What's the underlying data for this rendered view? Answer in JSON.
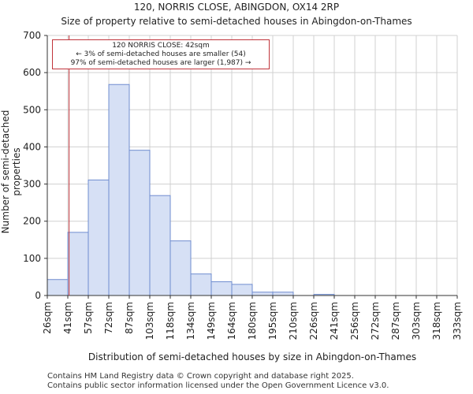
{
  "title": {
    "line1": "120, NORRIS CLOSE, ABINGDON, OX14 2RP",
    "line2": "Size of property relative to semi-detached houses in Abingdon-on-Thames"
  },
  "footer": {
    "line1": "Contains HM Land Registry data © Crown copyright and database right 2025.",
    "line2": "Contains public sector information licensed under the Open Government Licence v3.0."
  },
  "chart_data": {
    "type": "bar",
    "title": "Size of property relative to semi-detached houses in Abingdon-on-Thames",
    "xlabel": "Distribution of semi-detached houses by size in Abingdon-on-Thames",
    "ylabel": "Number of semi-detached properties",
    "bin_edges": [
      26,
      41,
      57,
      72,
      87,
      103,
      118,
      134,
      149,
      164,
      180,
      195,
      210,
      226,
      241,
      256,
      272,
      287,
      303,
      318,
      333
    ],
    "tick_labels": [
      "26sqm",
      "41sqm",
      "57sqm",
      "72sqm",
      "87sqm",
      "103sqm",
      "118sqm",
      "134sqm",
      "149sqm",
      "164sqm",
      "180sqm",
      "195sqm",
      "210sqm",
      "226sqm",
      "241sqm",
      "256sqm",
      "272sqm",
      "287sqm",
      "303sqm",
      "318sqm",
      "333sqm"
    ],
    "values": [
      43,
      170,
      311,
      568,
      391,
      269,
      147,
      58,
      37,
      30,
      9,
      9,
      0,
      3,
      0,
      0,
      0,
      0,
      0,
      0
    ],
    "ylim": [
      0,
      700
    ],
    "yticks": [
      0,
      100,
      200,
      300,
      400,
      500,
      600,
      700
    ],
    "bar_color": "#d6e0f5",
    "bar_edge_color": "#6f8ccf",
    "marker": {
      "value": 42,
      "color": "#c0343b",
      "annotation": {
        "line1": "120 NORRIS CLOSE: 42sqm",
        "line2": "← 3% of semi-detached houses are smaller (54)",
        "line3": "97% of semi-detached houses are larger (1,987) →"
      }
    }
  }
}
